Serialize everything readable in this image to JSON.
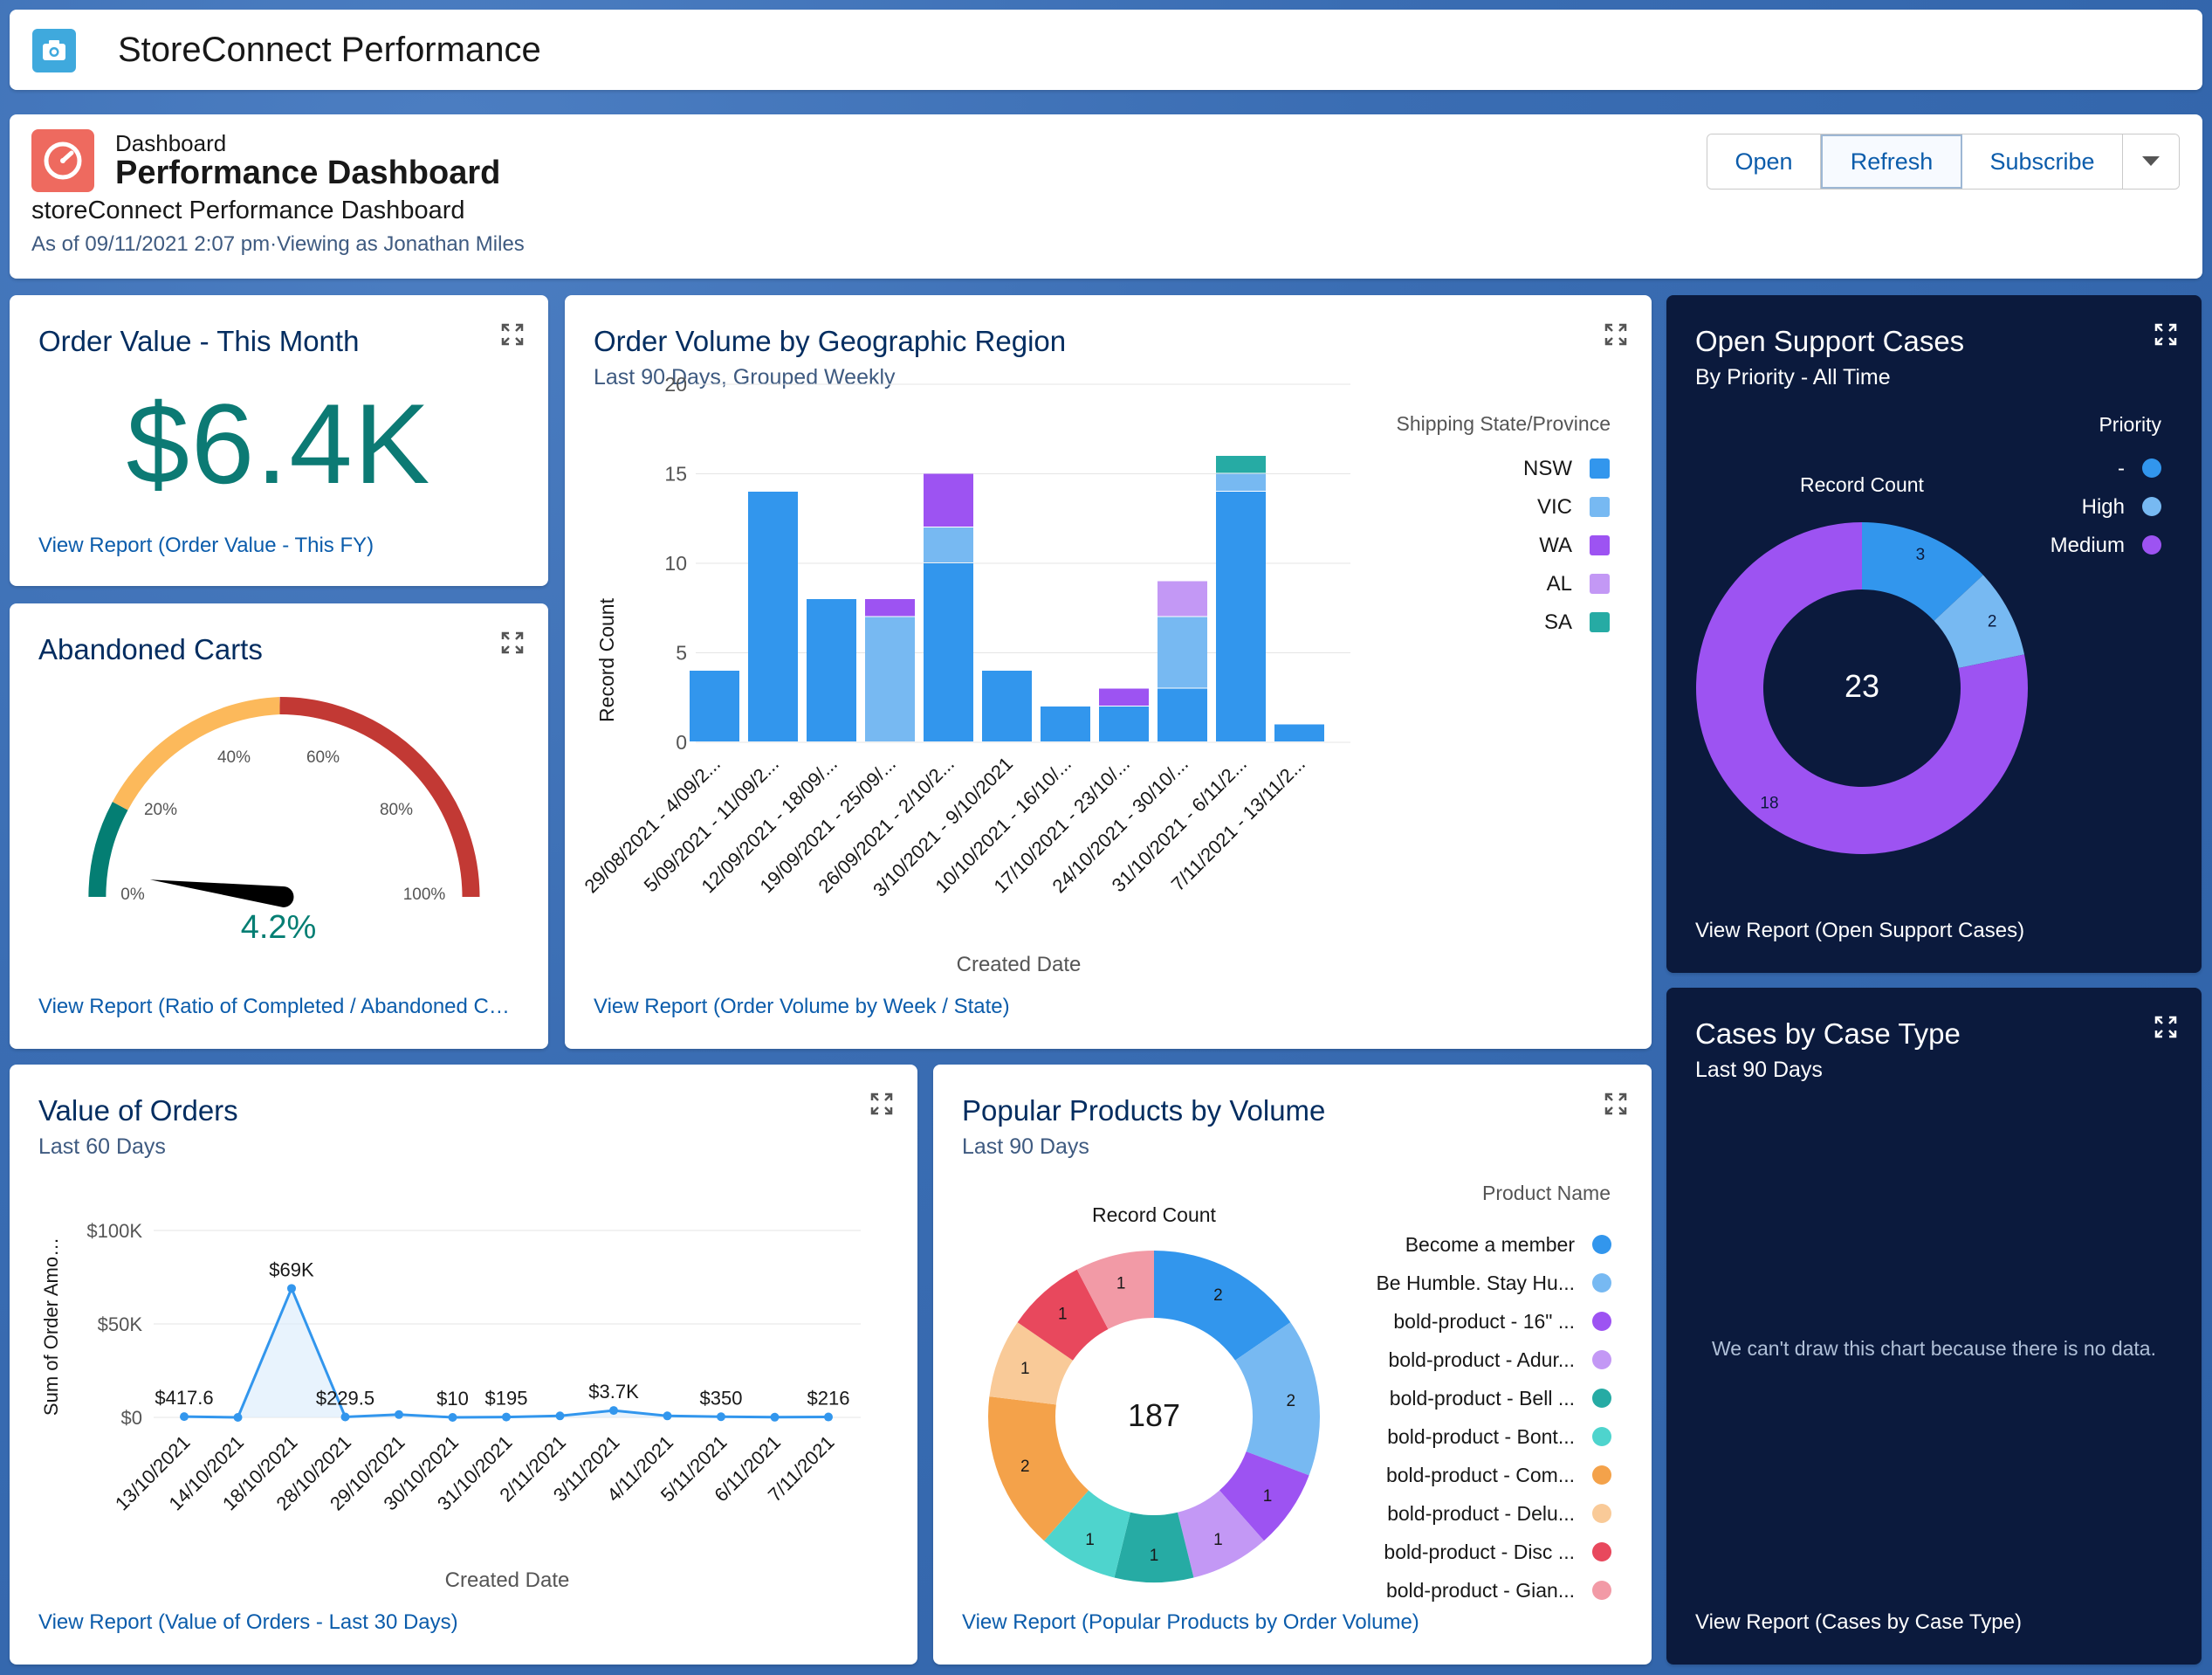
{
  "app": {
    "title": "StoreConnect Performance",
    "icon": "camera-icon"
  },
  "dashboard": {
    "label": "Dashboard",
    "title": "Performance Dashboard",
    "subtitle": "storeConnect Performance Dashboard",
    "as_of": "As of 09/11/2021 2:07 pm·Viewing as Jonathan Miles",
    "buttons": {
      "open": "Open",
      "refresh": "Refresh",
      "subscribe": "Subscribe"
    }
  },
  "order_value": {
    "title": "Order Value - This Month",
    "value": "$6.4K",
    "link": "View Report (Order Value - This FY)"
  },
  "abandoned": {
    "title": "Abandoned Carts",
    "value_text": "4.2%",
    "value": 4.2,
    "ticks": [
      "0%",
      "20%",
      "40%",
      "60%",
      "80%",
      "100%"
    ],
    "link": "View Report (Ratio of Completed / Abandoned C…"
  },
  "order_volume": {
    "title": "Order Volume by Geographic Region",
    "subtitle": "Last 90 Days, Grouped Weekly",
    "legend_title": "Shipping State/Province",
    "legend": [
      "NSW",
      "VIC",
      "WA",
      "AL",
      "SA"
    ],
    "ylabel": "Record Count",
    "xlabel": "Created Date",
    "yticks": [
      "20",
      "15",
      "10",
      "5",
      "0"
    ],
    "link": "View Report (Order Volume by Week / State)"
  },
  "open_cases": {
    "title": "Open Support Cases",
    "subtitle": "By Priority - All Time",
    "legend_title": "Priority",
    "legend": [
      "-",
      "High",
      "Medium"
    ],
    "chart_label": "Record Count",
    "total": "23",
    "labels": [
      "3",
      "2",
      "18"
    ],
    "link": "View Report (Open Support Cases)"
  },
  "cases_type": {
    "title": "Cases by Case Type",
    "subtitle": "Last 90 Days",
    "empty": "We can't draw this chart because there is no data.",
    "link": "View Report (Cases by Case Type)"
  },
  "value_orders": {
    "title": "Value of Orders",
    "subtitle": "Last 60 Days",
    "ylabel": "Sum of Order Amo…",
    "xlabel": "Created Date",
    "yticks": [
      "$100K",
      "$50K",
      "$0"
    ],
    "data_labels": [
      "$417.6",
      "$69K",
      "$229.5",
      "$10",
      "$195",
      "$3.7K",
      "$350",
      "$216"
    ],
    "link": "View Report (Value of Orders - Last 30 Days)"
  },
  "popular": {
    "title": "Popular Products by Volume",
    "subtitle": "Last 90 Days",
    "legend_title": "Product Name",
    "chart_label": "Record Count",
    "total": "187",
    "legend": [
      "Become a member",
      "Be Humble. Stay Hu...",
      "bold-product - 16\" ...",
      "bold-product - Adur...",
      "bold-product - Bell ...",
      "bold-product - Bont...",
      "bold-product - Com...",
      "bold-product - Delu...",
      "bold-product - Disc ...",
      "bold-product - Gian..."
    ],
    "link": "View Report (Popular Products by Order Volume)"
  },
  "colors": {
    "nsw": "#3296ed",
    "vic": "#77b9f2",
    "wa": "#9d53f2",
    "al": "#c398f5",
    "sa": "#26aba4",
    "teal": "#4ed4cd",
    "orange": "#f4a24a",
    "peach": "#f9ca98",
    "red": "#e8485d",
    "pink": "#f29aa6",
    "gauge_green": "#047e73",
    "gauge_yellow": "#fcb95b",
    "gauge_red": "#c23934"
  },
  "chart_data": [
    {
      "type": "bar",
      "title": "Order Volume by Geographic Region",
      "xlabel": "Created Date",
      "ylabel": "Record Count",
      "ylim": [
        0,
        20
      ],
      "categories": [
        "29/08/2021 - 4/09/2...",
        "5/09/2021 - 11/09/2...",
        "12/09/2021 - 18/09/...",
        "19/09/2021 - 25/09/...",
        "26/09/2021 - 2/10/2...",
        "3/10/2021 - 9/10/2021",
        "10/10/2021 - 16/10/...",
        "17/10/2021 - 23/10/...",
        "24/10/2021 - 30/10/...",
        "31/10/2021 - 6/11/2...",
        "7/11/2021 - 13/11/2..."
      ],
      "series": [
        {
          "name": "NSW",
          "values": [
            4,
            14,
            8,
            0,
            10,
            4,
            2,
            2,
            3,
            14,
            1
          ]
        },
        {
          "name": "VIC",
          "values": [
            0,
            0,
            0,
            7,
            2,
            0,
            0,
            0,
            4,
            1,
            0
          ]
        },
        {
          "name": "WA",
          "values": [
            0,
            0,
            0,
            1,
            3,
            0,
            0,
            1,
            0,
            0,
            0
          ]
        },
        {
          "name": "AL",
          "values": [
            0,
            0,
            0,
            0,
            0,
            0,
            0,
            0,
            2,
            0,
            0
          ]
        },
        {
          "name": "SA",
          "values": [
            0,
            0,
            0,
            0,
            0,
            0,
            0,
            0,
            0,
            1,
            0
          ]
        }
      ]
    },
    {
      "type": "pie",
      "title": "Open Support Cases",
      "categories": [
        "-",
        "High",
        "Medium"
      ],
      "values": [
        3,
        2,
        18
      ],
      "total": 23
    },
    {
      "type": "line",
      "title": "Value of Orders",
      "xlabel": "Created Date",
      "ylabel": "Sum of Order Amo…",
      "ylim": [
        0,
        100000
      ],
      "x": [
        "13/10/2021",
        "14/10/2021",
        "18/10/2021",
        "28/10/2021",
        "29/10/2021",
        "30/10/2021",
        "31/10/2021",
        "2/11/2021",
        "3/11/2021",
        "4/11/2021",
        "5/11/2021",
        "6/11/2021",
        "7/11/2021"
      ],
      "values": [
        417.6,
        0,
        69000,
        229.5,
        1500,
        10,
        195,
        800,
        3700,
        800,
        350,
        100,
        216
      ]
    },
    {
      "type": "pie",
      "title": "Popular Products by Volume",
      "categories": [
        "Become a member",
        "Be Humble. Stay Hu...",
        "bold-product - 16\" ...",
        "bold-product - Adur...",
        "bold-product - Bell ...",
        "bold-product - Bont...",
        "bold-product - Com...",
        "bold-product - Delu...",
        "bold-product - Disc ...",
        "bold-product - Gian..."
      ],
      "values": [
        2,
        2,
        1,
        1,
        1,
        1,
        2,
        1,
        1,
        1
      ],
      "total": 187
    }
  ]
}
